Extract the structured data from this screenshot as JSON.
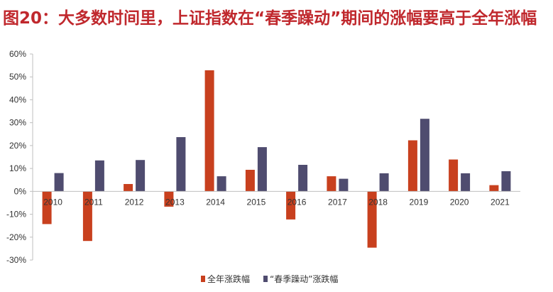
{
  "title": "图20：大多数时间里，上证指数在“春季躁动”期间的涨幅要高于全年涨幅",
  "colors": {
    "title": "#c0282d",
    "series_full_year": "#c8401e",
    "series_spring": "#4f4c6f",
    "axis": "#bfbfbf",
    "text": "#333333"
  },
  "chart_data": {
    "type": "bar",
    "title": "图20：大多数时间里，上证指数在“春季躁动”期间的涨幅要高于全年涨幅",
    "categories": [
      "2010",
      "2011",
      "2012",
      "2013",
      "2014",
      "2015",
      "2016",
      "2017",
      "2018",
      "2019",
      "2020",
      "2021"
    ],
    "series": [
      {
        "name": "全年涨跌幅",
        "color": "#c8401e",
        "values": [
          -14.3,
          -21.7,
          3.2,
          -6.7,
          52.9,
          9.4,
          -12.3,
          6.6,
          -24.6,
          22.3,
          13.9,
          2.7
        ]
      },
      {
        "name": "“春季躁动”涨跌幅",
        "color": "#4f4c6f",
        "values": [
          8.0,
          13.5,
          13.7,
          23.7,
          6.6,
          19.3,
          11.6,
          5.5,
          7.9,
          31.7,
          7.9,
          8.8
        ]
      }
    ],
    "y_ticks": [
      "-30%",
      "-20%",
      "-10%",
      "0%",
      "10%",
      "20%",
      "30%",
      "40%",
      "50%",
      "60%"
    ],
    "ylim": [
      -30,
      60
    ],
    "y_unit": "%",
    "grid": false,
    "legend_position": "bottom-center"
  }
}
